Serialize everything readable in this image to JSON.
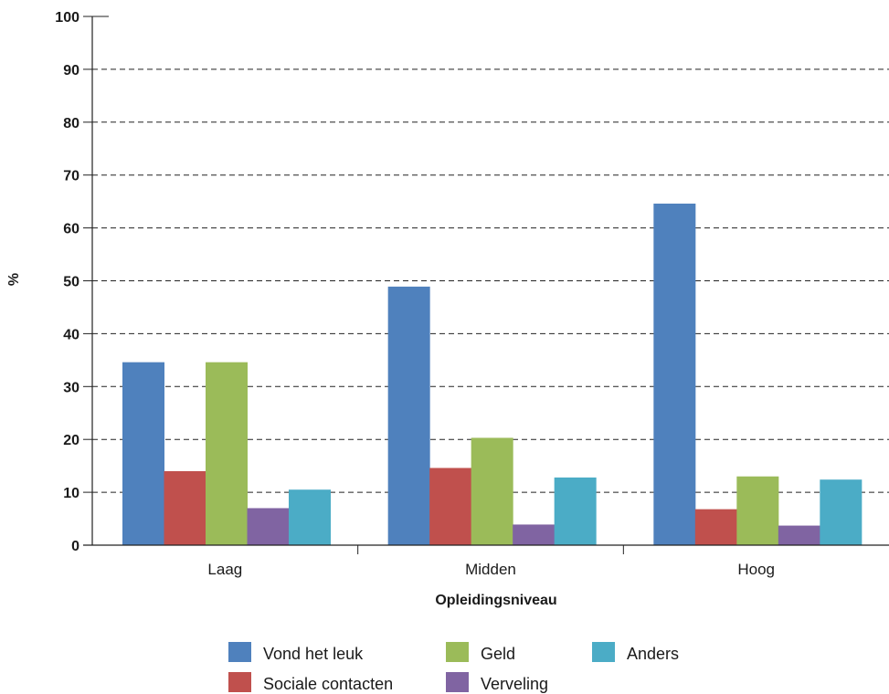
{
  "chart_data": {
    "type": "bar",
    "ylabel": "%",
    "xlabel": "Opleidingsniveau",
    "ylim": [
      0,
      100
    ],
    "yticks": [
      0,
      10,
      20,
      30,
      40,
      50,
      60,
      70,
      80,
      90,
      100
    ],
    "grid": "horizontal dashed",
    "legend_position": "bottom",
    "categories": [
      "Laag",
      "Midden",
      "Hoog"
    ],
    "series": [
      {
        "name": "Vond het leuk",
        "color": "#4f81bd",
        "values": [
          34.6,
          48.9,
          64.6
        ]
      },
      {
        "name": "Sociale contacten",
        "color": "#c0504d",
        "values": [
          14.0,
          14.6,
          6.8
        ]
      },
      {
        "name": "Geld",
        "color": "#9bbb59",
        "values": [
          34.6,
          20.3,
          13.0
        ]
      },
      {
        "name": "Verveling",
        "color": "#8064a2",
        "values": [
          7.0,
          3.9,
          3.7
        ]
      },
      {
        "name": "Anders",
        "color": "#4bacc6",
        "values": [
          10.5,
          12.8,
          12.4
        ]
      }
    ]
  }
}
